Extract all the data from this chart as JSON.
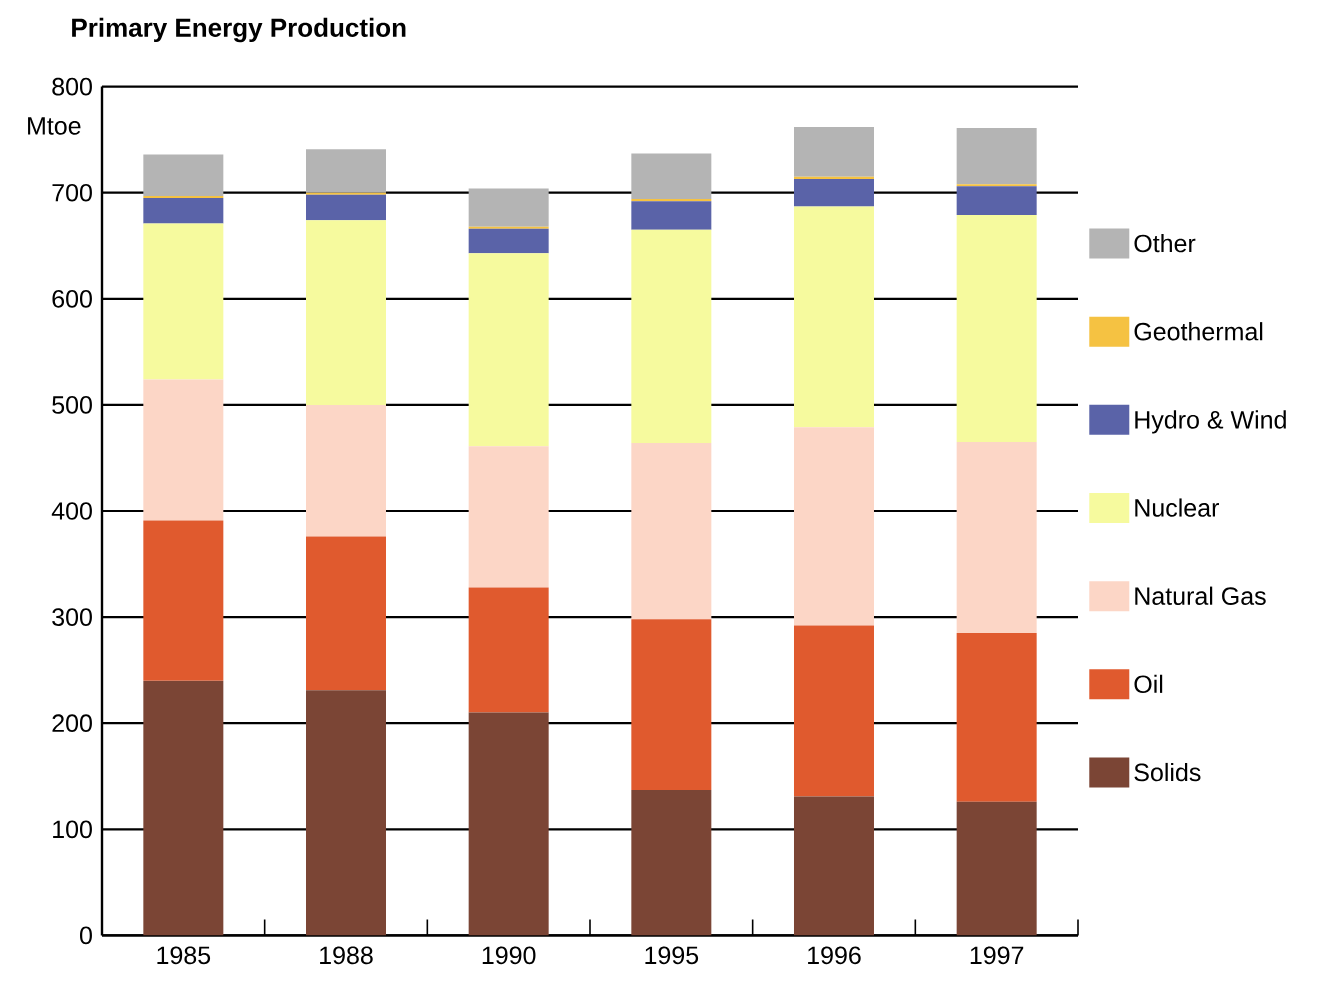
{
  "chart_data": {
    "type": "bar",
    "title": "Primary Energy Production",
    "ylabel": "Mtoe",
    "categories": [
      "1985",
      "1988",
      "1990",
      "1995",
      "1996",
      "1997"
    ],
    "stacked": true,
    "series": [
      {
        "name": "Solids",
        "color": "#7b4535",
        "values": [
          240,
          231,
          210,
          137,
          131,
          126
        ]
      },
      {
        "name": "Oil",
        "color": "#e05a2e",
        "values": [
          151,
          145,
          118,
          161,
          161,
          159
        ]
      },
      {
        "name": "Natural Gas",
        "color": "#fcd6c6",
        "values": [
          133,
          124,
          133,
          166,
          187,
          180
        ]
      },
      {
        "name": "Nuclear",
        "color": "#f6fa9e",
        "values": [
          147,
          174,
          182,
          201,
          208,
          214
        ]
      },
      {
        "name": "Hydro & Wind",
        "color": "#5a63a8",
        "values": [
          24,
          24,
          23,
          27,
          26,
          27
        ]
      },
      {
        "name": "Geothermal",
        "color": "#f5c242",
        "values": [
          2,
          2,
          2,
          2,
          2,
          2
        ]
      },
      {
        "name": "Other",
        "color": "#b4b4b4",
        "values": [
          39,
          41,
          36,
          43,
          47,
          53
        ]
      }
    ],
    "ylim": [
      0,
      800
    ],
    "yticks": [
      0,
      100,
      200,
      300,
      400,
      500,
      600,
      700,
      800
    ],
    "grid": "y",
    "legend": "right"
  }
}
